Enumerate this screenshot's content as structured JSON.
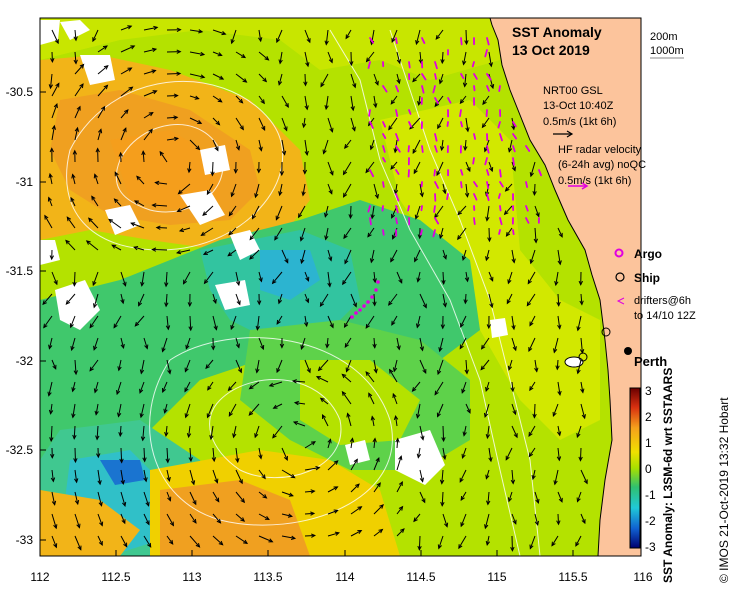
{
  "title": {
    "line1": "SST Anomaly",
    "line2": "13 Oct 2019"
  },
  "isobath_key": {
    "shallow": "200m",
    "deep": "1000m"
  },
  "vector_key": {
    "gsl_label": "NRT00 GSL",
    "gsl_time": "13-Oct 10:40Z",
    "gsl_scale": "0.5m/s (1kt 6h)",
    "hf_line1": "HF radar velocity",
    "hf_line2": "(6-24h avg) noQC",
    "hf_scale": "0.5m/s (1kt 6h)"
  },
  "legend": {
    "argo": "Argo",
    "ship": "Ship",
    "drifters_line1": "drifters@6h",
    "drifters_line2": "to 14/10 12Z"
  },
  "place_label": "Perth",
  "x_ticks": [
    "112",
    "112.5",
    "113",
    "113.5",
    "114",
    "114.5",
    "115",
    "115.5",
    "116"
  ],
  "y_ticks": [
    "-30.5",
    "-31",
    "-31.5",
    "-32",
    "-32.5",
    "-33"
  ],
  "colorbar": {
    "ticks": [
      "3",
      "2",
      "1",
      "0",
      "-1",
      "-2",
      "-3"
    ],
    "label": "SST Anomaly: L3SM-6d wrt SSTAARS",
    "range": [
      -3,
      3
    ]
  },
  "credit": "© IMOS 21-Oct-2019 13:32 Hobart",
  "colors": {
    "land": "#fcc49c",
    "warm": "#f0a020",
    "neutral": "#c8e600",
    "cool": "#3cc878",
    "cold": "#30c0d0",
    "argo": "#e000e0",
    "hf_arrow": "#e000e0"
  }
}
